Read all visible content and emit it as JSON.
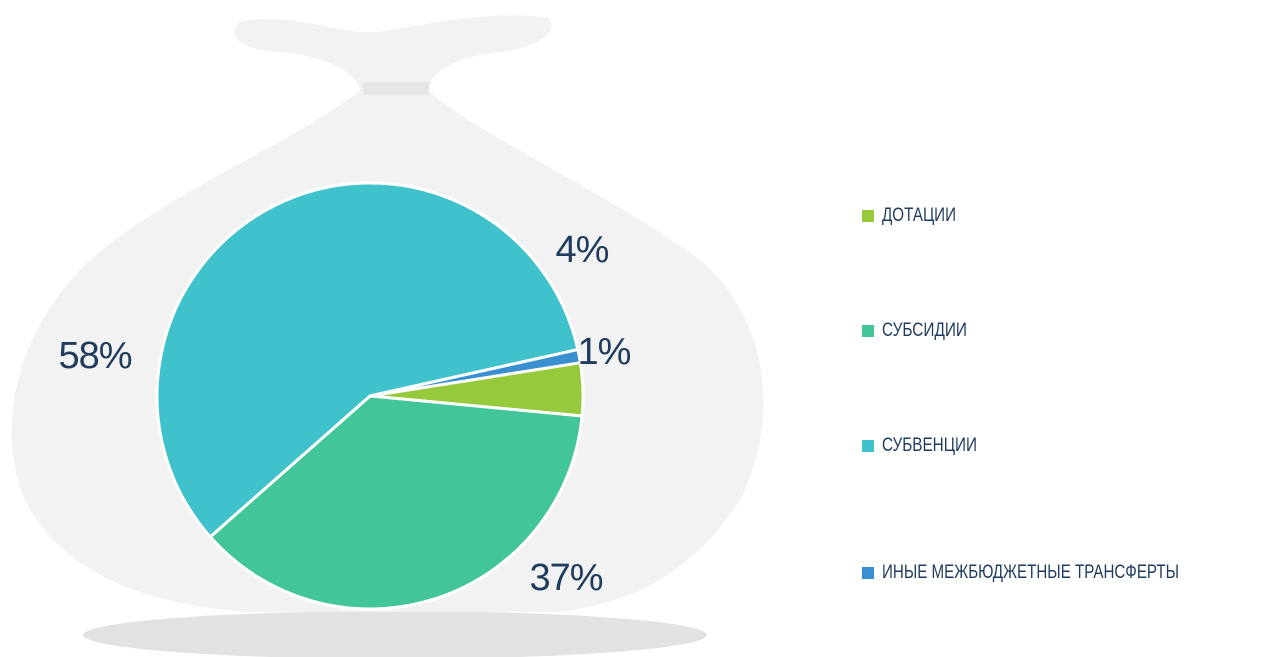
{
  "chart_data": {
    "type": "pie",
    "categories": [
      "ДОТАЦИИ",
      "СУБСИДИИ",
      "СУБВЕНЦИИ",
      "ИНЫЕ МЕЖБЮДЖЕТНЫЕ ТРАНСФЕРТЫ"
    ],
    "values": [
      4,
      37,
      58,
      1
    ],
    "value_labels": [
      "4%",
      "37%",
      "58%",
      "1%"
    ],
    "colors": [
      "#97c93d",
      "#43c59a",
      "#40c2cc",
      "#3a8fd1"
    ],
    "legend": "right"
  }
}
